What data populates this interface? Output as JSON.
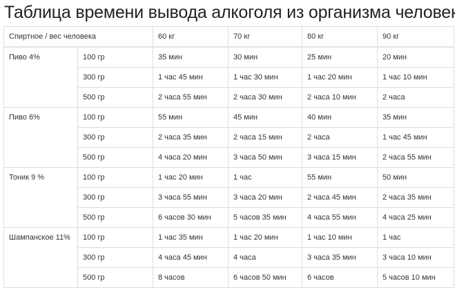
{
  "title": "Таблица времени вывода алкоголя из организма человека",
  "header": {
    "first": "Спиртное / вес человека",
    "weights": [
      "60 кг",
      "70 кг",
      "80 кг",
      "90 кг"
    ]
  },
  "groups": [
    {
      "drink": "Пиво 4%",
      "rows": [
        {
          "amount": "100 гр",
          "values": [
            "35 мин",
            "30 мин",
            "25 мин",
            "20 мин"
          ]
        },
        {
          "amount": "300 гр",
          "values": [
            "1 час 45 мин",
            "1 час 30 мин",
            "1 час 20 мин",
            "1 час 10 мин"
          ]
        },
        {
          "amount": "500 гр",
          "values": [
            "2 часа 55 мин",
            "2 часа 30 мин",
            "2 часа 10 мин",
            "2 часа"
          ]
        }
      ]
    },
    {
      "drink": "Пиво 6%",
      "rows": [
        {
          "amount": "100 гр",
          "values": [
            "55 мин",
            "45 мин",
            "40 мин",
            "35 мин"
          ]
        },
        {
          "amount": "300 гр",
          "values": [
            "2 часа 35 мин",
            "2 часа 15 мин",
            "2 часа",
            "1 час 45 мин"
          ]
        },
        {
          "amount": "500 гр",
          "values": [
            "4 часа 20 мин",
            "3 часа 50 мин",
            "3 часа 15 мин",
            "2 часа 55 мин"
          ]
        }
      ]
    },
    {
      "drink": "Тоник 9 %",
      "rows": [
        {
          "amount": "100 гр",
          "values": [
            "1 час 20 мин",
            "1 час",
            "55 мин",
            "50 мин"
          ]
        },
        {
          "amount": "300 гр",
          "values": [
            "3 часа 55 мин",
            "3 часа 20 мин",
            "2 часа 45 мин",
            "2 часа 35 мин"
          ]
        },
        {
          "amount": "500 гр",
          "values": [
            "6 часов 30 мин",
            "5 часов 35 мин",
            "4 часа 55 мин",
            "4 часа 25 мин"
          ]
        }
      ]
    },
    {
      "drink": "Шампанское 11%",
      "rows": [
        {
          "amount": "100 гр",
          "values": [
            "1 час 35 мин",
            "1 час 20 мин",
            "1 час 10 мин",
            "1 час"
          ]
        },
        {
          "amount": "300 гр",
          "values": [
            "4 часа 45 мин",
            "4 часа",
            "3 часа 35 мин",
            "3 часа 10 мин"
          ]
        },
        {
          "amount": "500 гр",
          "values": [
            "8 часов",
            "6 часов 50 мин",
            "6 часов",
            "5 часов 10 мин"
          ]
        }
      ]
    }
  ]
}
